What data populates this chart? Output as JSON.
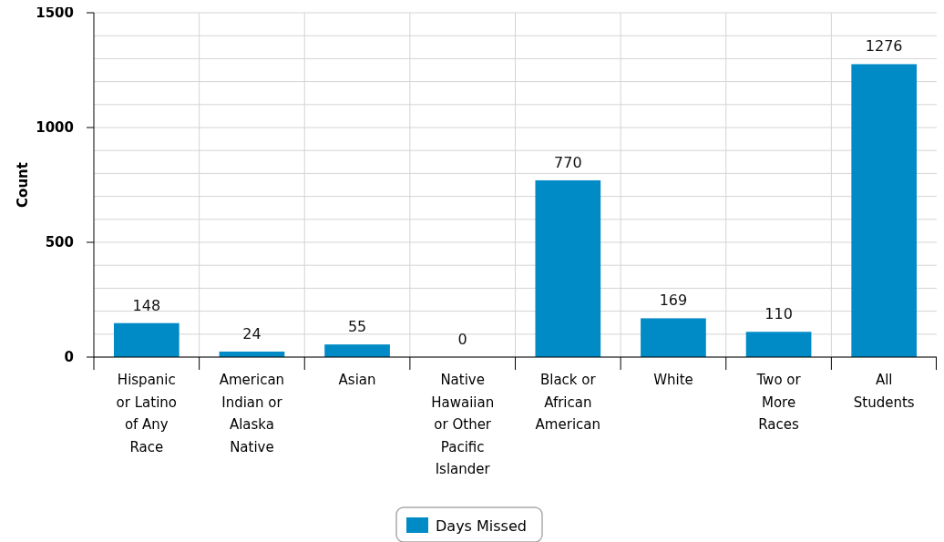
{
  "chart_data": {
    "type": "bar",
    "ylabel": "Count",
    "categories": [
      "Hispanic or Latino of Any Race",
      "American Indian or Alaska Native",
      "Asian",
      "Native Hawaiian or Other Pacific Islander",
      "Black or African American",
      "White",
      "Two or More Races",
      "All Students"
    ],
    "series": [
      {
        "name": "Days Missed",
        "color": "#008bc6",
        "values": [
          148,
          24,
          55,
          0,
          770,
          169,
          110,
          1276
        ]
      }
    ],
    "ylim": [
      0,
      1500
    ],
    "yticks": [
      0,
      {
        "value": 100,
        "label": null
      },
      {
        "value": 200,
        "label": null
      },
      {
        "value": 300,
        "label": null
      },
      {
        "value": 400,
        "label": null
      },
      500,
      {
        "value": 600,
        "label": null
      },
      {
        "value": 700,
        "label": null
      },
      {
        "value": 800,
        "label": null
      },
      {
        "value": 900,
        "label": null
      },
      1000,
      {
        "value": 1100,
        "label": null
      },
      {
        "value": 1200,
        "label": null
      },
      {
        "value": 1300,
        "label": null
      },
      {
        "value": 1400,
        "label": null
      },
      1500
    ],
    "grid": true,
    "legend": "bottom",
    "data_labels": true
  }
}
